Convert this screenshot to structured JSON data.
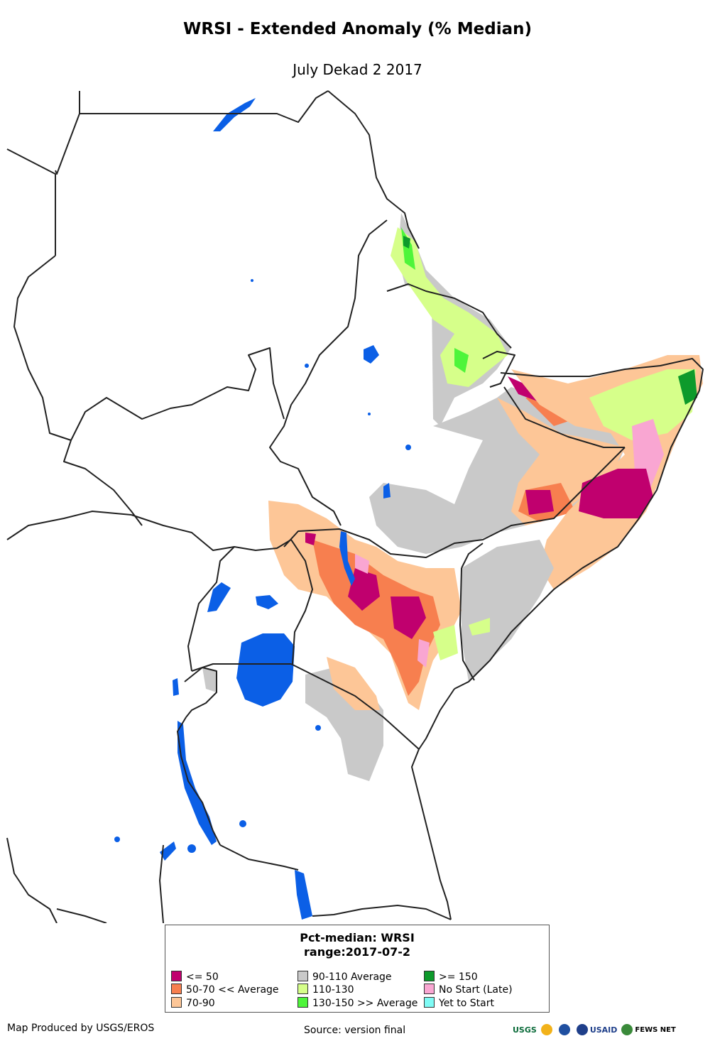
{
  "header": {
    "title": "WRSI - Extended Anomaly (% Median)",
    "subtitle": "July Dekad 2 2017"
  },
  "legend": {
    "title_line1": "Pct-median: WRSI",
    "title_line2": "range:2017-07-2",
    "items": [
      {
        "label": "<= 50",
        "color": "#c0006e"
      },
      {
        "label": "50-70 << Average",
        "color": "#f77f4f"
      },
      {
        "label": "70-90",
        "color": "#fdc697"
      },
      {
        "label": "90-110 Average",
        "color": "#c9c9c9"
      },
      {
        "label": "110-130",
        "color": "#d6ff8a"
      },
      {
        "label": "130-150 >> Average",
        "color": "#4ef53a"
      },
      {
        "label": ">= 150",
        "color": "#0d9a2b"
      },
      {
        "label": "No Start (Late)",
        "color": "#f9a6d2"
      },
      {
        "label": "Yet to Start",
        "color": "#7ffbf5"
      }
    ]
  },
  "footer": {
    "produced_by": "Map Produced by USGS/EROS",
    "source": "Source: version final"
  },
  "logos": {
    "usgs": "USGS",
    "usaid": "USAID",
    "fewsnet": "FEWS NET"
  },
  "colors": {
    "water": "#0b5fe6",
    "border": "#222222"
  }
}
